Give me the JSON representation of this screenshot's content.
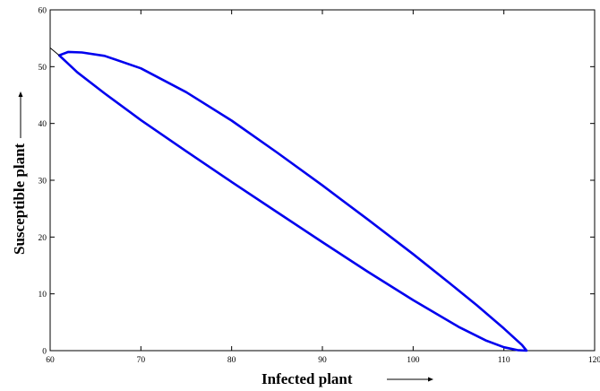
{
  "chart_data": {
    "type": "line",
    "title": "",
    "xlabel": "Infected plant",
    "ylabel": "Susceptible plant",
    "xlim": [
      60,
      120
    ],
    "ylim": [
      0,
      60
    ],
    "x_ticks": [
      60,
      70,
      80,
      90,
      100,
      110,
      120
    ],
    "y_ticks": [
      0,
      10,
      20,
      30,
      40,
      50,
      60
    ],
    "grid": false,
    "legend": "none",
    "series_color": "#0000ee",
    "series": [
      {
        "name": "",
        "style": "closed-loop",
        "x": [
          61.0,
          63.0,
          66.0,
          70.0,
          75.0,
          80.0,
          85.0,
          90.0,
          95.0,
          100.0,
          105.0,
          108.0,
          110.0,
          111.5,
          112.5,
          112.0,
          110.0,
          107.0,
          104.0,
          100.0,
          95.0,
          90.0,
          85.0,
          80.0,
          75.0,
          70.0,
          66.0,
          63.5,
          62.0,
          61.0
        ],
        "y": [
          52.0,
          49.0,
          45.3,
          40.6,
          35.1,
          29.7,
          24.4,
          19.1,
          13.9,
          8.9,
          4.2,
          1.8,
          0.6,
          0.1,
          0.0,
          1.0,
          3.9,
          8.0,
          11.9,
          17.0,
          23.1,
          29.1,
          34.9,
          40.5,
          45.5,
          49.7,
          51.9,
          52.5,
          52.6,
          52.0
        ]
      },
      {
        "name": "",
        "style": "line",
        "x": [
          60.0,
          61.0
        ],
        "y": [
          53.3,
          52.0
        ]
      }
    ]
  }
}
